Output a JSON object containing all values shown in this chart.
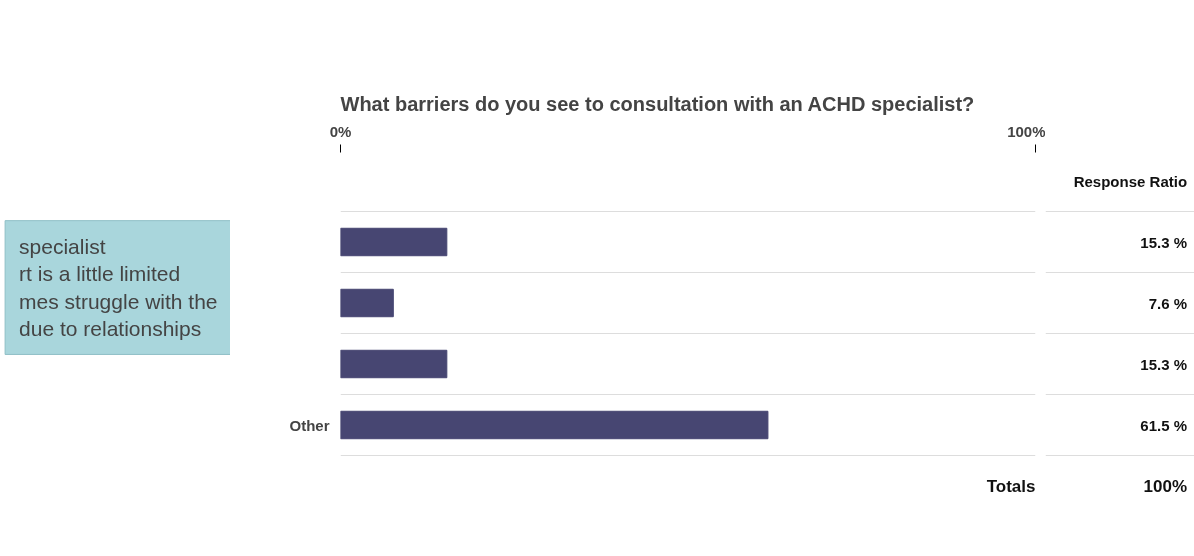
{
  "chart_data": {
    "type": "bar",
    "orientation": "horizontal",
    "title": "What barriers do you see to consultation with an ACHD specialist?",
    "categories": [
      null,
      null,
      null,
      "Other"
    ],
    "values": [
      15.3,
      7.6,
      15.3,
      61.5
    ],
    "color": "#474672",
    "value_labels": [
      "15.3 %",
      "7.6 %",
      "15.3 %",
      "61.5 %"
    ],
    "xlim": [
      0,
      100
    ],
    "xticks": [
      {
        "value": 0,
        "label": "0%"
      },
      {
        "value": 100,
        "label": "100%"
      }
    ],
    "annotations": [
      "specialist\nrt is a little limited\nmes struggle with the\n due to relationships",
      "Response Ratio",
      "Totals",
      "100%"
    ],
    "grid": false
  }
}
